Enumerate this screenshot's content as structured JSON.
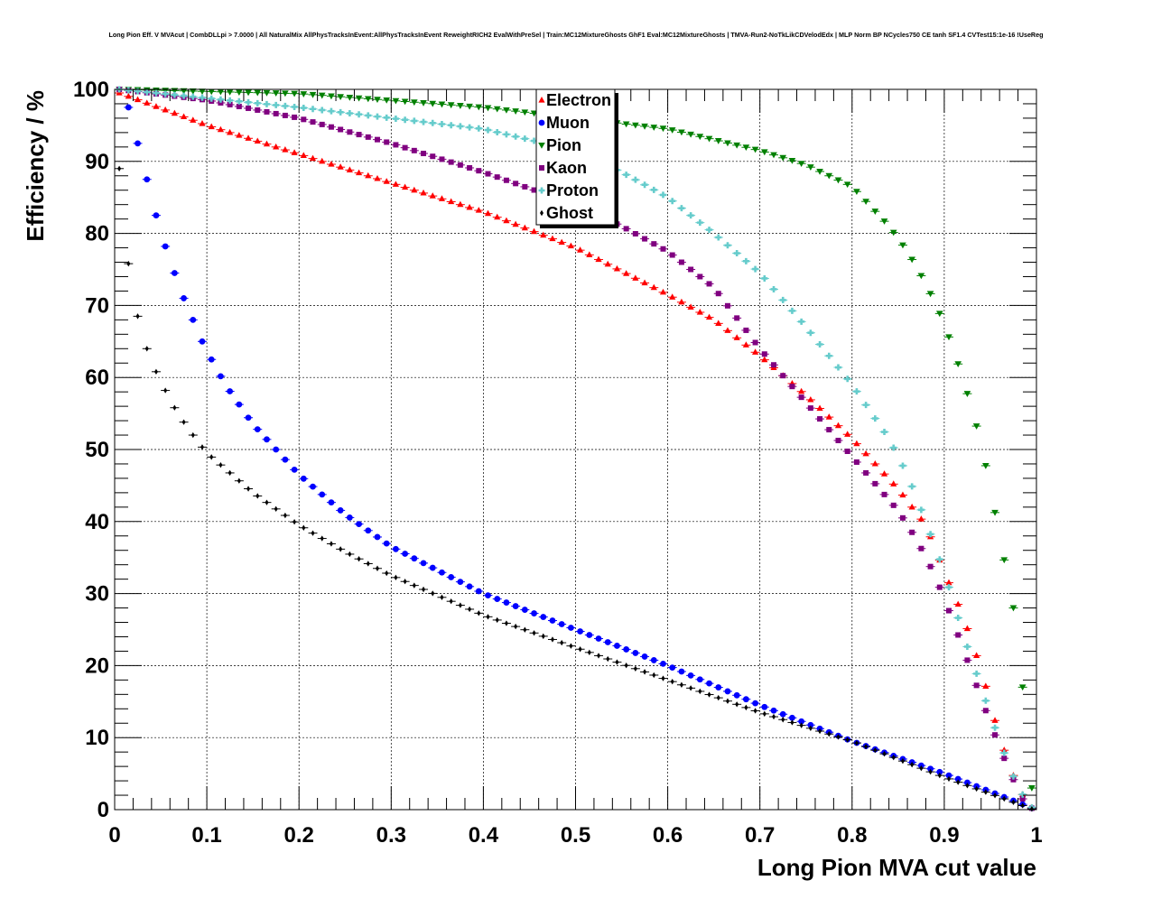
{
  "chart_data": {
    "type": "scatter",
    "title": "Long Pion Eff. V MVAcut | CombDLLpi > 7.0000 | All NaturalMix AllPhysTracksInEvent:AllPhysTracksInEvent ReweightRICH2 EvalWithPreSel | Train:MC12MixtureGhosts GhF1 Eval:MC12MixtureGhosts | TMVA-Run2-NoTkLikCDVelodEdx | MLP Norm BP NCycles750 CE tanh SF1.4 CVTest15:1e-16 !UseReg",
    "xlabel": "Long Pion MVA cut value",
    "ylabel": "Efficiency / %",
    "xlim": [
      0,
      1
    ],
    "ylim": [
      0,
      100
    ],
    "xticks": [
      0,
      0.1,
      0.2,
      0.3,
      0.4,
      0.5,
      0.6,
      0.7,
      0.8,
      0.9,
      1
    ],
    "xtick_labels": [
      "0",
      "0.1",
      "0.2",
      "0.3",
      "0.4",
      "0.5",
      "0.6",
      "0.7",
      "0.8",
      "0.9",
      "1"
    ],
    "yticks": [
      0,
      10,
      20,
      30,
      40,
      50,
      60,
      70,
      80,
      90,
      100
    ],
    "ytick_labels": [
      "0",
      "10",
      "20",
      "30",
      "40",
      "50",
      "60",
      "70",
      "80",
      "90",
      "100"
    ],
    "grid": true,
    "legend_position": "top-center",
    "series_shape": "efficiency vs cut, one point every 0.01 from 0.005 to 0.995",
    "series": [
      {
        "name": "Electron",
        "color": "#ff0000",
        "marker": "triangle-up",
        "knots_x": [
          0.005,
          0.1,
          0.2,
          0.3,
          0.4,
          0.5,
          0.6,
          0.65,
          0.7,
          0.75,
          0.8,
          0.85,
          0.88,
          0.9,
          0.92,
          0.94,
          0.96,
          0.98,
          0.995
        ],
        "knots_y": [
          99.5,
          95,
          91,
          87,
          83,
          78,
          71.5,
          68,
          63,
          57.5,
          51.5,
          44.5,
          39.5,
          33,
          27,
          19.5,
          10,
          3,
          0.3
        ]
      },
      {
        "name": "Muon",
        "color": "#0000ff",
        "marker": "circle",
        "knots_x": [
          0.005,
          0.015,
          0.025,
          0.035,
          0.045,
          0.055,
          0.065,
          0.075,
          0.085,
          0.095,
          0.105,
          0.12,
          0.15,
          0.2,
          0.25,
          0.3,
          0.4,
          0.5,
          0.6,
          0.7,
          0.8,
          0.9,
          0.95,
          0.98,
          0.995
        ],
        "knots_y": [
          100,
          97.5,
          92.5,
          87.5,
          82.5,
          78.2,
          74.5,
          71,
          68,
          65,
          62.5,
          59,
          53.5,
          46.5,
          41,
          36.5,
          30,
          25,
          20,
          14.5,
          9.5,
          5,
          2.5,
          1,
          0.2
        ]
      },
      {
        "name": "Pion",
        "color": "#008000",
        "marker": "triangle-down",
        "knots_x": [
          0.005,
          0.2,
          0.4,
          0.5,
          0.6,
          0.7,
          0.75,
          0.8,
          0.84,
          0.86,
          0.88,
          0.9,
          0.92,
          0.94,
          0.96,
          0.975,
          0.985,
          0.995
        ],
        "knots_y": [
          100,
          99.4,
          97.5,
          96,
          94.5,
          91.5,
          89.5,
          86.5,
          81,
          77.5,
          73,
          67.5,
          60,
          51,
          38,
          28,
          17,
          3
        ]
      },
      {
        "name": "Kaon",
        "color": "#800080",
        "marker": "square",
        "knots_x": [
          0.005,
          0.1,
          0.2,
          0.3,
          0.4,
          0.5,
          0.55,
          0.6,
          0.65,
          0.7,
          0.75,
          0.8,
          0.83,
          0.85,
          0.87,
          0.89,
          0.91,
          0.93,
          0.95,
          0.97,
          0.985,
          0.995
        ],
        "knots_y": [
          100,
          98.5,
          96,
          92.5,
          88.5,
          84,
          81,
          77.5,
          72.5,
          64,
          56.5,
          49,
          44.5,
          41.5,
          37.5,
          32.5,
          26,
          19,
          12,
          5.5,
          1.5,
          0.2
        ]
      },
      {
        "name": "Proton",
        "color": "#66cccc",
        "marker": "cross",
        "knots_x": [
          0.005,
          0.2,
          0.3,
          0.4,
          0.5,
          0.55,
          0.6,
          0.65,
          0.7,
          0.75,
          0.8,
          0.84,
          0.86,
          0.88,
          0.9,
          0.92,
          0.94,
          0.96,
          0.98,
          0.995
        ],
        "knots_y": [
          100,
          97.5,
          96,
          94.5,
          91.5,
          88.5,
          85,
          80,
          74.5,
          67,
          59,
          51.5,
          46.5,
          40,
          33,
          24.5,
          17,
          9.5,
          3,
          0.3
        ]
      },
      {
        "name": "Ghost",
        "color": "#000000",
        "marker": "diamond",
        "knots_x": [
          0.005,
          0.015,
          0.025,
          0.035,
          0.045,
          0.055,
          0.065,
          0.075,
          0.085,
          0.1,
          0.15,
          0.2,
          0.25,
          0.3,
          0.4,
          0.5,
          0.6,
          0.7,
          0.8,
          0.9,
          0.95,
          0.98,
          0.995
        ],
        "knots_y": [
          89,
          75.8,
          68.5,
          64,
          60.8,
          58.2,
          55.8,
          53.8,
          52,
          49.5,
          44,
          39.5,
          35.8,
          32.5,
          27,
          22.5,
          18,
          13.5,
          9.5,
          4.5,
          2.2,
          0.8,
          0.1
        ]
      }
    ]
  }
}
